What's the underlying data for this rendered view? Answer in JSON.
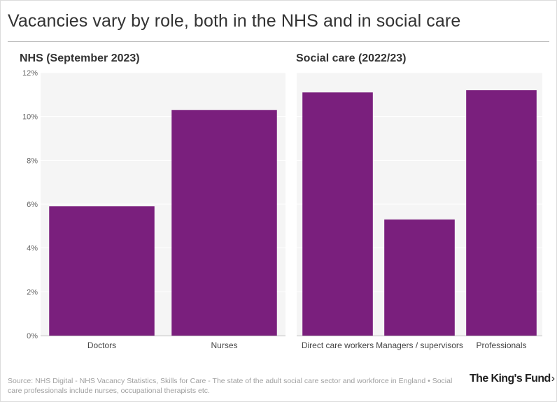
{
  "title": "Vacancies vary by role, both in the NHS and in social care",
  "source_text": "Source: NHS Digital - NHS Vacancy Statistics, Skills for Care - The state of the adult social care sector and workforce in England • Social care professionals include nurses, occupational therapists etc.",
  "logo": {
    "text": "The King's Fund",
    "chevron": "›"
  },
  "colors": {
    "bar": "#7a1f7d",
    "plot_bg": "#f5f5f5",
    "grid": "#ffffff",
    "axis": "#bbbbbb"
  },
  "chart_data": [
    {
      "type": "bar",
      "title": "NHS (September 2023)",
      "categories": [
        "Doctors",
        "Nurses"
      ],
      "values": [
        5.9,
        10.3
      ],
      "xlabel": "",
      "ylabel": "",
      "ylim": [
        0,
        12
      ],
      "yticks": [
        0,
        2,
        4,
        6,
        8,
        10,
        12
      ],
      "ytick_labels": [
        "0%",
        "2%",
        "4%",
        "6%",
        "8%",
        "10%",
        "12%"
      ],
      "grid": true
    },
    {
      "type": "bar",
      "title": "Social care (2022/23)",
      "categories": [
        "Direct care workers",
        "Managers / supervisors",
        "Professionals"
      ],
      "values": [
        11.1,
        5.3,
        11.2
      ],
      "xlabel": "",
      "ylabel": "",
      "ylim": [
        0,
        12
      ],
      "grid": true
    }
  ]
}
